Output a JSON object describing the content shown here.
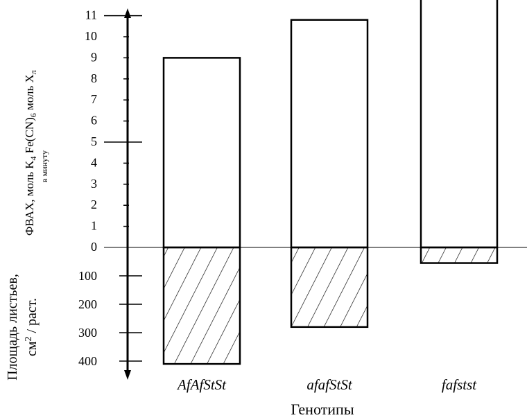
{
  "chart_data": {
    "type": "bar",
    "categories": [
      "AfAfStSt",
      "afafStSt",
      "fafstst"
    ],
    "upper": {
      "label_main": "ФВАХ, моль K",
      "label_sub1": "4",
      "label_mid": " Fe(CN)",
      "label_sub2": "6",
      "label_end": " моль Х",
      "label_sub3": "л",
      "label_line2": "в минуту",
      "values": [
        9,
        10.8,
        11.9
      ],
      "ylim": [
        0,
        12
      ],
      "ticks": [
        "0",
        "1",
        "2",
        "3",
        "4",
        "5",
        "6",
        "7",
        "8",
        "9",
        "10",
        "11"
      ]
    },
    "lower": {
      "label_line1": "Площадь листьев,",
      "label_line2_pre": "см",
      "label_line2_sup": "2",
      "label_line2_post": " / раст.",
      "values": [
        410,
        280,
        55
      ],
      "ylim": [
        0,
        400
      ],
      "ticks": [
        "100",
        "200",
        "300",
        "400"
      ]
    },
    "xlabel": "Генотипы",
    "legend": "none",
    "grid": false
  }
}
